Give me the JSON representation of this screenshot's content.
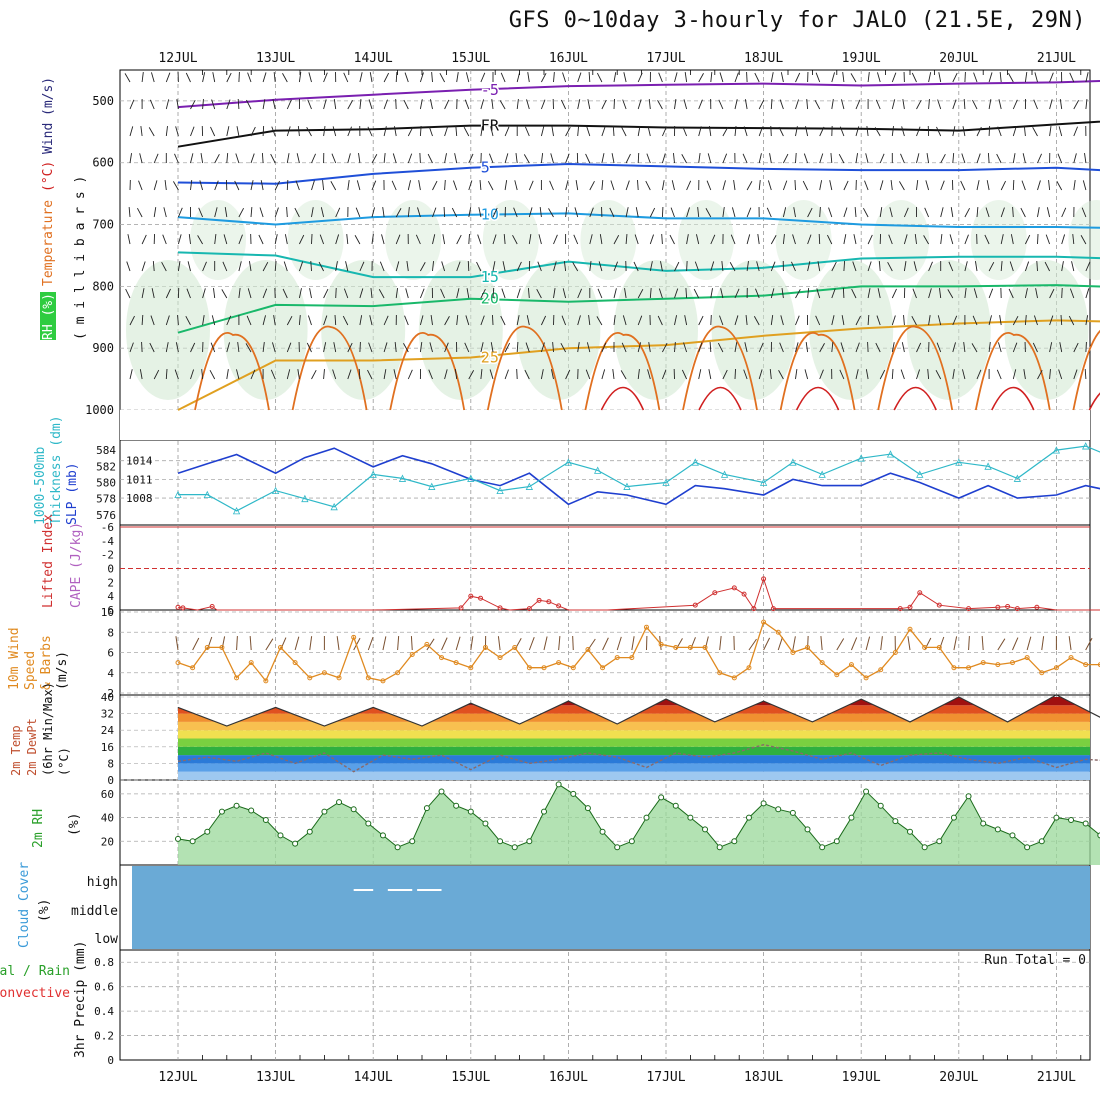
{
  "title": "GFS 0~10day 3-hourly for JALO (21.5E, 29N)",
  "dates": [
    "12JUL",
    "13JUL",
    "14JUL",
    "15JUL",
    "16JUL",
    "17JUL",
    "18JUL",
    "19JUL",
    "20JUL",
    "21JUL"
  ],
  "colors": {
    "temp_purple": "#7a1fb0",
    "temp_black": "#111111",
    "temp_blue": "#1f4fd8",
    "temp_lightblue": "#1e9be0",
    "temp_teal": "#17b7b0",
    "temp_green": "#19b86a",
    "temp_gold": "#e0a020",
    "temp_orange": "#e07020",
    "temp_red": "#d02020",
    "slp": "#1f3fcf",
    "thickness": "#2fb8c8",
    "lifted": "#d03030",
    "wind10m": "#e08a20",
    "rh_fill": "#2ecc40",
    "cloud": "#6aaad6"
  },
  "chart_data": [
    {
      "panel": "upper",
      "type": "line",
      "ylabel_parts": [
        "RH (%)",
        "Temperature",
        "(°C)",
        "Wind",
        "(m/s)"
      ],
      "ylabel_unit": "( m i l l i b a r s )",
      "y_ticks": [
        "500",
        "600",
        "700",
        "800",
        "900",
        "1000"
      ],
      "ylim": [
        450,
        1000
      ],
      "contour_labels": {
        "temp": [
          "-5",
          "FR",
          "5",
          "10",
          "15",
          "20",
          "25"
        ],
        "rh": [
          "10",
          "30"
        ]
      },
      "series": [
        {
          "label": "-5",
          "x": [
            0,
            1,
            2,
            3,
            4,
            5,
            6,
            7,
            8,
            9,
            9.8
          ],
          "values": [
            510,
            498,
            490,
            482,
            476,
            474,
            472,
            475,
            472,
            470,
            466
          ]
        },
        {
          "label": "FR",
          "x": [
            0,
            1,
            2,
            3,
            4,
            5,
            6,
            7,
            8,
            9,
            9.8
          ],
          "values": [
            574,
            548,
            546,
            540,
            540,
            543,
            544,
            545,
            548,
            538,
            530
          ]
        },
        {
          "label": "5",
          "x": [
            0,
            1,
            2,
            3,
            4,
            5,
            6,
            7,
            8,
            9,
            9.8
          ],
          "values": [
            632,
            634,
            618,
            608,
            602,
            606,
            610,
            612,
            612,
            608,
            615
          ]
        },
        {
          "label": "10",
          "x": [
            0,
            1,
            2,
            3,
            4,
            5,
            6,
            7,
            8,
            9,
            9.8
          ],
          "values": [
            688,
            700,
            688,
            684,
            682,
            690,
            690,
            700,
            704,
            704,
            706
          ]
        },
        {
          "label": "15",
          "x": [
            0,
            1,
            2,
            3,
            4,
            5,
            6,
            7,
            8,
            9,
            9.8
          ],
          "values": [
            745,
            750,
            785,
            785,
            760,
            775,
            770,
            755,
            752,
            752,
            756
          ]
        },
        {
          "label": "20",
          "x": [
            0,
            1,
            2,
            3,
            4,
            5,
            6,
            7,
            8,
            9,
            9.8
          ],
          "values": [
            875,
            830,
            832,
            820,
            825,
            820,
            815,
            800,
            800,
            798,
            802
          ]
        },
        {
          "label": "25",
          "x": [
            0,
            1,
            2,
            3,
            4,
            5,
            6,
            7,
            8,
            9,
            9.8
          ],
          "values": [
            1000,
            920,
            920,
            915,
            900,
            895,
            880,
            868,
            860,
            855,
            858
          ]
        }
      ]
    },
    {
      "panel": "slp_thickness",
      "type": "line",
      "ylabel_left": [
        "1000-500mb",
        "Thickness (dm)"
      ],
      "ylabel_right": "SLP (mb)",
      "left_ticks": [
        "584",
        "582",
        "580",
        "578",
        "576"
      ],
      "left_ylim": [
        575,
        585
      ],
      "right_ticks": [
        "1014",
        "1011",
        "1008"
      ],
      "right_ylim": [
        1004,
        1017
      ],
      "series": [
        {
          "name": "SLP",
          "x": [
            0,
            0.3,
            0.6,
            1.0,
            1.3,
            1.6,
            2.0,
            2.3,
            2.6,
            3.0,
            3.3,
            3.6,
            4.0,
            4.3,
            4.6,
            5.0,
            5.3,
            5.6,
            6.0,
            6.3,
            6.6,
            7.0,
            7.3,
            7.6,
            8.0,
            8.3,
            8.6,
            9.0,
            9.3,
            9.6,
            9.8
          ],
          "values": [
            1012,
            1013.5,
            1015,
            1012,
            1014.5,
            1016,
            1013,
            1014.8,
            1013.5,
            1011,
            1010,
            1012,
            1007,
            1009,
            1008.5,
            1007,
            1010,
            1009.5,
            1008.5,
            1011,
            1010,
            1010,
            1012,
            1010.5,
            1008,
            1010,
            1008,
            1008.5,
            1010,
            1009,
            1010.5
          ]
        },
        {
          "name": "Thickness",
          "x": [
            0,
            0.3,
            0.6,
            1.0,
            1.3,
            1.6,
            2.0,
            2.3,
            2.6,
            3.0,
            3.3,
            3.6,
            4.0,
            4.3,
            4.6,
            5.0,
            5.3,
            5.6,
            6.0,
            6.3,
            6.6,
            7.0,
            7.3,
            7.6,
            8.0,
            8.3,
            8.6,
            9.0,
            9.3,
            9.6,
            9.8
          ],
          "values": [
            578.5,
            578.5,
            576.5,
            579,
            578,
            577,
            581,
            580.5,
            579.5,
            580.5,
            579,
            579.5,
            582.5,
            581.5,
            579.5,
            580,
            582.5,
            581,
            580,
            582.5,
            581,
            583,
            583.5,
            581,
            582.5,
            582,
            580.5,
            584,
            584.5,
            583,
            583
          ]
        }
      ]
    },
    {
      "panel": "lifted_cape",
      "type": "line",
      "ylabel_left": "Lifted Index",
      "ylabel_right": "CAPE (J/kg)",
      "y_ticks": [
        "-6",
        "-4",
        "-2",
        "0",
        "2",
        "4",
        "6"
      ],
      "ylim": [
        -6,
        6
      ],
      "series": [
        {
          "name": "Lifted Index",
          "x": [
            0,
            0.05,
            0.2,
            0.35,
            0.4,
            2.0,
            2.9,
            3.0,
            3.1,
            3.3,
            3.4,
            3.6,
            3.7,
            3.8,
            3.9,
            4.0,
            4.1,
            4.2,
            4.3,
            4.4,
            5.3,
            5.5,
            5.7,
            5.8,
            5.9,
            6.0,
            6.1,
            7.4,
            7.5,
            7.6,
            7.8,
            8.1,
            8.4,
            8.5,
            8.6,
            8.8,
            9.0,
            9.9
          ],
          "values": [
            5.6,
            5.7,
            6,
            5.5,
            6,
            6,
            5.7,
            4,
            4.3,
            5.7,
            6,
            5.8,
            4.6,
            4.8,
            5.4,
            6,
            6,
            6,
            6,
            6,
            5.3,
            3.5,
            2.8,
            3.7,
            5.8,
            1.5,
            5.8,
            5.8,
            5.6,
            3.5,
            5.3,
            5.8,
            5.6,
            5.5,
            5.8,
            5.6,
            6,
            6
          ]
        }
      ]
    },
    {
      "panel": "wind10m",
      "type": "line",
      "ylabel": [
        "10m Wind",
        "Speed",
        "& Barbs",
        "(m/s)"
      ],
      "y_ticks": [
        "10",
        "8",
        "6",
        "4",
        "2"
      ],
      "ylim": [
        2,
        10
      ],
      "series": [
        {
          "name": "10m wind speed",
          "x": [
            0,
            0.15,
            0.3,
            0.45,
            0.6,
            0.75,
            0.9,
            1.05,
            1.2,
            1.35,
            1.5,
            1.65,
            1.8,
            1.95,
            2.1,
            2.25,
            2.4,
            2.55,
            2.7,
            2.85,
            3.0,
            3.15,
            3.3,
            3.45,
            3.6,
            3.75,
            3.9,
            4.05,
            4.2,
            4.35,
            4.5,
            4.65,
            4.8,
            4.95,
            5.1,
            5.25,
            5.4,
            5.55,
            5.7,
            5.85,
            6.0,
            6.15,
            6.3,
            6.45,
            6.6,
            6.75,
            6.9,
            7.05,
            7.2,
            7.35,
            7.5,
            7.65,
            7.8,
            7.95,
            8.1,
            8.25,
            8.4,
            8.55,
            8.7,
            8.85,
            9.0,
            9.15,
            9.3,
            9.45,
            9.6,
            9.75,
            9.9
          ],
          "values": [
            5,
            4.5,
            6.5,
            6.5,
            3.5,
            5,
            3.2,
            6.5,
            5,
            3.5,
            4,
            3.5,
            7.5,
            3.5,
            3.2,
            4,
            5.8,
            6.8,
            5.5,
            5,
            4.5,
            6.5,
            5.5,
            6.5,
            4.5,
            4.5,
            5,
            4.5,
            6.3,
            4.5,
            5.5,
            5.5,
            8.5,
            6.8,
            6.5,
            6.5,
            6.5,
            4,
            3.5,
            4.5,
            9,
            8,
            6,
            6.5,
            5,
            3.8,
            4.8,
            3.5,
            4.3,
            6,
            8.3,
            6.5,
            6.5,
            4.5,
            4.5,
            5,
            4.8,
            5,
            5.5,
            4,
            4.5,
            5.5,
            4.8,
            4.8,
            5.5,
            4.5,
            4.5
          ]
        }
      ]
    },
    {
      "panel": "temp2m",
      "type": "area",
      "ylabel": [
        "2m Temp",
        "2m DewPt",
        "(6hr Min/Max)",
        "(°C)"
      ],
      "y_ticks": [
        "40",
        "32",
        "24",
        "16",
        "8",
        "0"
      ],
      "ylim": [
        0,
        40
      ],
      "series": [
        {
          "name": "2m Temp",
          "x": [
            0,
            0.5,
            1,
            1.5,
            2,
            2.5,
            3,
            3.5,
            4,
            4.5,
            5,
            5.5,
            6,
            6.5,
            7,
            7.5,
            8,
            8.5,
            9,
            9.5,
            9.9
          ],
          "values": [
            35,
            26,
            35,
            26,
            35,
            26,
            37,
            27,
            38,
            27,
            39,
            28,
            38,
            28,
            39,
            28,
            40,
            28,
            41,
            29,
            30
          ]
        },
        {
          "name": "2m DewPt",
          "x": [
            0,
            0.3,
            0.6,
            0.9,
            1.2,
            1.5,
            1.8,
            2.1,
            2.4,
            2.7,
            3.0,
            3.3,
            3.6,
            3.9,
            4.2,
            4.5,
            4.8,
            5.1,
            5.4,
            5.7,
            6.0,
            6.3,
            6.6,
            6.9,
            7.2,
            7.5,
            7.8,
            8.1,
            8.4,
            8.7,
            9.0,
            9.3,
            9.6,
            9.9
          ],
          "values": [
            9,
            11,
            9,
            13,
            8,
            13,
            4,
            12,
            10,
            12,
            5,
            12,
            8,
            10,
            13,
            11,
            6,
            13,
            11,
            13,
            17,
            14,
            10,
            13,
            7,
            12,
            13,
            10,
            8,
            11,
            6,
            10,
            9,
            10
          ]
        }
      ]
    },
    {
      "panel": "rh2m",
      "type": "area",
      "ylabel": [
        "2m RH",
        "(%)"
      ],
      "y_ticks": [
        "60",
        "40",
        "20"
      ],
      "ylim": [
        0,
        70
      ],
      "series": [
        {
          "name": "2m RH",
          "x": [
            0,
            0.15,
            0.3,
            0.45,
            0.6,
            0.75,
            0.9,
            1.05,
            1.2,
            1.35,
            1.5,
            1.65,
            1.8,
            1.95,
            2.1,
            2.25,
            2.4,
            2.55,
            2.7,
            2.85,
            3.0,
            3.15,
            3.3,
            3.45,
            3.6,
            3.75,
            3.9,
            4.05,
            4.2,
            4.35,
            4.5,
            4.65,
            4.8,
            4.95,
            5.1,
            5.25,
            5.4,
            5.55,
            5.7,
            5.85,
            6.0,
            6.15,
            6.3,
            6.45,
            6.6,
            6.75,
            6.9,
            7.05,
            7.2,
            7.35,
            7.5,
            7.65,
            7.8,
            7.95,
            8.1,
            8.25,
            8.4,
            8.55,
            8.7,
            8.85,
            9.0,
            9.15,
            9.3,
            9.45,
            9.6,
            9.75,
            9.9
          ],
          "values": [
            22,
            20,
            28,
            45,
            50,
            46,
            38,
            25,
            18,
            28,
            45,
            53,
            47,
            35,
            25,
            15,
            20,
            48,
            62,
            50,
            45,
            35,
            20,
            15,
            20,
            45,
            68,
            60,
            48,
            28,
            15,
            20,
            40,
            57,
            50,
            40,
            30,
            15,
            20,
            40,
            52,
            47,
            44,
            30,
            15,
            20,
            40,
            62,
            50,
            37,
            28,
            15,
            20,
            40,
            58,
            35,
            30,
            25,
            15,
            20,
            40,
            38,
            35,
            25,
            15,
            15,
            28
          ]
        }
      ]
    },
    {
      "panel": "cloud",
      "type": "area",
      "ylabel": [
        "Cloud Cover",
        "(%)"
      ],
      "levels": [
        "high",
        "middle",
        "low"
      ],
      "series": [
        {
          "name": "high",
          "x": [
            1.8,
            2.0,
            2.15,
            2.4,
            2.45,
            2.7
          ],
          "values": [
            1,
            1,
            1,
            1,
            1,
            1
          ]
        }
      ]
    },
    {
      "panel": "precip",
      "type": "bar",
      "ylabel": [
        "3hr Precip (mm)"
      ],
      "legend": [
        "Total / Rain",
        "Convective"
      ],
      "annotation": "Run Total = 0",
      "y_ticks": [
        "0.8",
        "0.6",
        "0.4",
        "0.2",
        "0"
      ],
      "ylim": [
        0,
        0.9
      ],
      "series": [
        {
          "name": "Total / Rain",
          "values": [
            0
          ]
        }
      ]
    }
  ]
}
